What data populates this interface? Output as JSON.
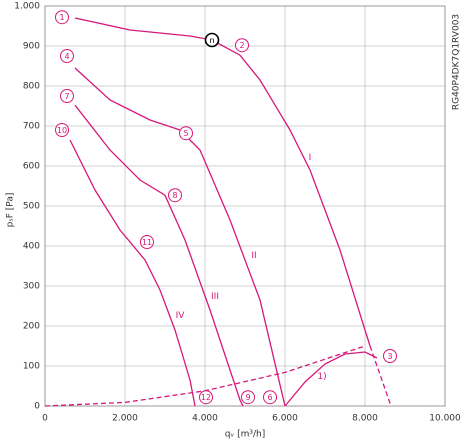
{
  "chart_data": {
    "type": "line",
    "x_label": "qᵥ [m³/h]",
    "y_label": "pₛF [Pa]",
    "side_text": "RG40P4DK7Q1RV003",
    "xlim": [
      0,
      10000
    ],
    "ylim": [
      0,
      1000
    ],
    "xticks": [
      0,
      {
        "value": 2000,
        "label": "2.000"
      },
      {
        "value": 4000,
        "label": "4.000"
      },
      {
        "value": 6000,
        "label": "6.000"
      },
      {
        "value": 8000,
        "label": "8.000"
      },
      {
        "value": 10000,
        "label": "10.000"
      }
    ],
    "yticks": [
      0,
      100,
      200,
      300,
      400,
      500,
      600,
      700,
      800,
      900,
      {
        "value": 1000,
        "label": "1.000"
      }
    ],
    "grid": true,
    "series": [
      {
        "color": "#d6197a",
        "dashed": false,
        "x": [
          750,
          2125,
          3625,
          4175,
          4875,
          5375,
          6125,
          6625,
          7375,
          8125
        ],
        "values": [
          970,
          940,
          925,
          915,
          877,
          815,
          690,
          590,
          390,
          150
        ]
      },
      {
        "color": "#d6197a",
        "dashed": false,
        "x": [
          750,
          1625,
          2625,
          3375,
          3875,
          4625,
          5375,
          6000
        ],
        "values": [
          845,
          765,
          715,
          690,
          640,
          465,
          265,
          0
        ]
      },
      {
        "color": "#d6197a",
        "dashed": false,
        "x": [
          750,
          1625,
          2375,
          3000,
          3500,
          4125,
          4875,
          4950
        ],
        "values": [
          752,
          640,
          565,
          527,
          415,
          240,
          15,
          0
        ]
      },
      {
        "color": "#d6197a",
        "dashed": false,
        "x": [
          625,
          1250,
          1875,
          2500,
          2875,
          3250,
          3625,
          3750
        ],
        "values": [
          665,
          540,
          440,
          365,
          290,
          190,
          65,
          0
        ]
      },
      {
        "color": "#d6197a",
        "dashed": false,
        "x": [
          6000,
          6500,
          7000,
          7500,
          8000,
          8300
        ],
        "values": [
          0,
          60,
          105,
          130,
          135,
          120
        ]
      },
      {
        "color": "#d6197a",
        "dashed": true,
        "x": [
          0,
          2000,
          4000,
          6000,
          8000
        ],
        "values": [
          0,
          9,
          38,
          84,
          150
        ]
      },
      {
        "color": "#d6197a",
        "dashed": true,
        "x": [
          8125,
          8650
        ],
        "values": [
          150,
          0
        ]
      }
    ],
    "annotations": [
      {
        "text": "1",
        "x": 425,
        "y": 972,
        "circled": true
      },
      {
        "text": "2",
        "x": 4925,
        "y": 902,
        "circled": true
      },
      {
        "text": "3",
        "x": 8625,
        "y": 125,
        "circled": true
      },
      {
        "text": "4",
        "x": 550,
        "y": 875,
        "circled": true
      },
      {
        "text": "5",
        "x": 3525,
        "y": 682,
        "circled": true
      },
      {
        "text": "6",
        "x": 5625,
        "y": 22,
        "circled": true
      },
      {
        "text": "7",
        "x": 550,
        "y": 775,
        "circled": true
      },
      {
        "text": "8",
        "x": 3250,
        "y": 527,
        "circled": true
      },
      {
        "text": "9",
        "x": 5075,
        "y": 22,
        "circled": true
      },
      {
        "text": "10",
        "x": 425,
        "y": 690,
        "circled": true
      },
      {
        "text": "11",
        "x": 2550,
        "y": 410,
        "circled": true
      },
      {
        "text": "12",
        "x": 4025,
        "y": 22,
        "circled": true
      },
      {
        "text": "n",
        "x": 4175,
        "y": 915,
        "circled": true,
        "color": "#000000"
      },
      {
        "text": "I",
        "x": 6625,
        "y": 622,
        "circled": false
      },
      {
        "text": "II",
        "x": 5225,
        "y": 377,
        "circled": false
      },
      {
        "text": "III",
        "x": 4250,
        "y": 275,
        "circled": false
      },
      {
        "text": "IV",
        "x": 3375,
        "y": 227,
        "circled": false
      },
      {
        "text": "1)",
        "x": 6925,
        "y": 75,
        "circled": false
      }
    ]
  }
}
